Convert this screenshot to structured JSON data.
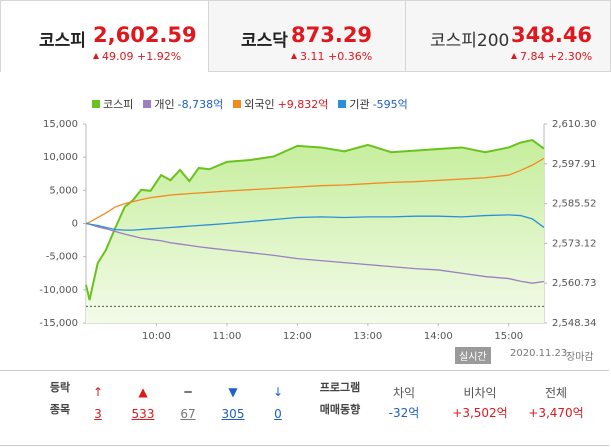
{
  "tabs": [
    {
      "name": "코스피",
      "value": "2,602.59",
      "change": "49.09",
      "rate": "+1.92%"
    },
    {
      "name": "코스닥",
      "value": "873.29",
      "change": "3.11",
      "rate": "+0.36%"
    },
    {
      "name": "코스피200",
      "value": "348.46",
      "change": "7.84",
      "rate": "+2.30%"
    }
  ],
  "chart_data": {
    "type": "line",
    "x": [
      "09:00",
      "09:03",
      "09:10",
      "09:17",
      "09:25",
      "09:33",
      "09:40",
      "09:47",
      "09:55",
      "10:04",
      "10:12",
      "10:20",
      "10:28",
      "10:36",
      "10:45",
      "11:00",
      "11:20",
      "11:40",
      "12:00",
      "12:20",
      "12:40",
      "13:00",
      "13:20",
      "13:40",
      "14:00",
      "14:20",
      "14:40",
      "15:00",
      "15:10",
      "15:20",
      "15:30"
    ],
    "xlim": [
      "09:00",
      "15:30"
    ],
    "xticks": [
      "10:00",
      "11:00",
      "12:00",
      "13:00",
      "14:00",
      "15:00"
    ],
    "ylim": [
      -15000,
      15000
    ],
    "yticks": [
      {
        "value": 15000,
        "label": "15,000"
      },
      {
        "value": 10000,
        "label": "10,000"
      },
      {
        "value": 5000,
        "label": "5,000"
      },
      0,
      {
        "value": -5000,
        "label": "-5,000"
      },
      {
        "value": -10000,
        "label": "-10,000"
      },
      {
        "value": -15000,
        "label": "-15,000"
      }
    ],
    "y2lim": [
      2548.34,
      2610.3
    ],
    "y2ticks": [
      {
        "value": 2610.3,
        "label": "2,610.30"
      },
      {
        "value": 2597.91,
        "label": "2,597.91"
      },
      {
        "value": 2585.52,
        "label": "2,585.52"
      },
      {
        "value": 2573.12,
        "label": "2,573.12"
      },
      {
        "value": 2560.73,
        "label": "2,560.73"
      },
      {
        "value": 2548.34,
        "label": "2,548.34"
      }
    ],
    "reference_line": 2553.5,
    "grid": false,
    "series": [
      {
        "name": "코스피",
        "color": "#6ac21f",
        "axis": "y2",
        "area": true,
        "values": [
          2560.2,
          2555.5,
          2567.0,
          2571.1,
          2578.0,
          2584.5,
          2586.6,
          2589.8,
          2589.5,
          2594.4,
          2592.8,
          2596.0,
          2592.5,
          2596.6,
          2596.2,
          2598.5,
          2599.1,
          2600.2,
          2603.5,
          2603.0,
          2601.8,
          2603.8,
          2601.5,
          2602.0,
          2602.5,
          2603.0,
          2601.5,
          2603.0,
          2604.5,
          2605.3,
          2602.6
        ]
      },
      {
        "name": "개인",
        "color": "#9b7fc0",
        "summary": "-8,738억",
        "summary_color": "#1e5fc8",
        "values": [
          0,
          -100,
          -500,
          -800,
          -1200,
          -1600,
          -1900,
          -2200,
          -2400,
          -2600,
          -2900,
          -3100,
          -3300,
          -3500,
          -3700,
          -4000,
          -4400,
          -4800,
          -5300,
          -5600,
          -5900,
          -6200,
          -6500,
          -6800,
          -7000,
          -7500,
          -8000,
          -8300,
          -8700,
          -9000,
          -8738
        ]
      },
      {
        "name": "외국인",
        "color": "#f38a1f",
        "summary": "+9,832억",
        "summary_color": "#e0181e",
        "values": [
          0,
          200,
          900,
          1600,
          2500,
          3000,
          3300,
          3600,
          3900,
          4100,
          4300,
          4400,
          4500,
          4600,
          4700,
          4900,
          5100,
          5300,
          5500,
          5700,
          5800,
          6000,
          6200,
          6300,
          6500,
          6700,
          6900,
          7300,
          8000,
          8800,
          9832
        ]
      },
      {
        "name": "기관",
        "color": "#2b8fd6",
        "summary": "-595억",
        "summary_color": "#1e5fc8",
        "values": [
          0,
          -100,
          -300,
          -600,
          -900,
          -1000,
          -1000,
          -900,
          -800,
          -700,
          -600,
          -500,
          -400,
          -300,
          -200,
          0,
          300,
          600,
          900,
          1000,
          900,
          1000,
          1000,
          1100,
          1100,
          1000,
          1200,
          1300,
          1200,
          700,
          -595
        ]
      }
    ]
  },
  "market_status": {
    "badge": "실시간",
    "date": "2020.11.23",
    "status": "장마감"
  },
  "advance_decline": {
    "label": [
      "등락",
      "종목"
    ],
    "items": [
      {
        "symbol": "↑",
        "count": 3,
        "color": "#e0181e"
      },
      {
        "symbol": "▲",
        "count": 533,
        "color": "#e0181e"
      },
      {
        "symbol": "━",
        "count": 67,
        "color": "#777777"
      },
      {
        "symbol": "▼",
        "count": 305,
        "color": "#1e5fc8"
      },
      {
        "symbol": "↓",
        "count": 0,
        "color": "#1e5fc8"
      }
    ]
  },
  "program_trading": {
    "label": [
      "프로그램",
      "매매동향"
    ],
    "items": [
      {
        "name": "차익",
        "value": "-32억",
        "color": "#1e5fc8"
      },
      {
        "name": "비차익",
        "value": "+3,502억",
        "color": "#e0181e"
      },
      {
        "name": "전체",
        "value": "+3,470억",
        "color": "#e0181e"
      }
    ]
  }
}
